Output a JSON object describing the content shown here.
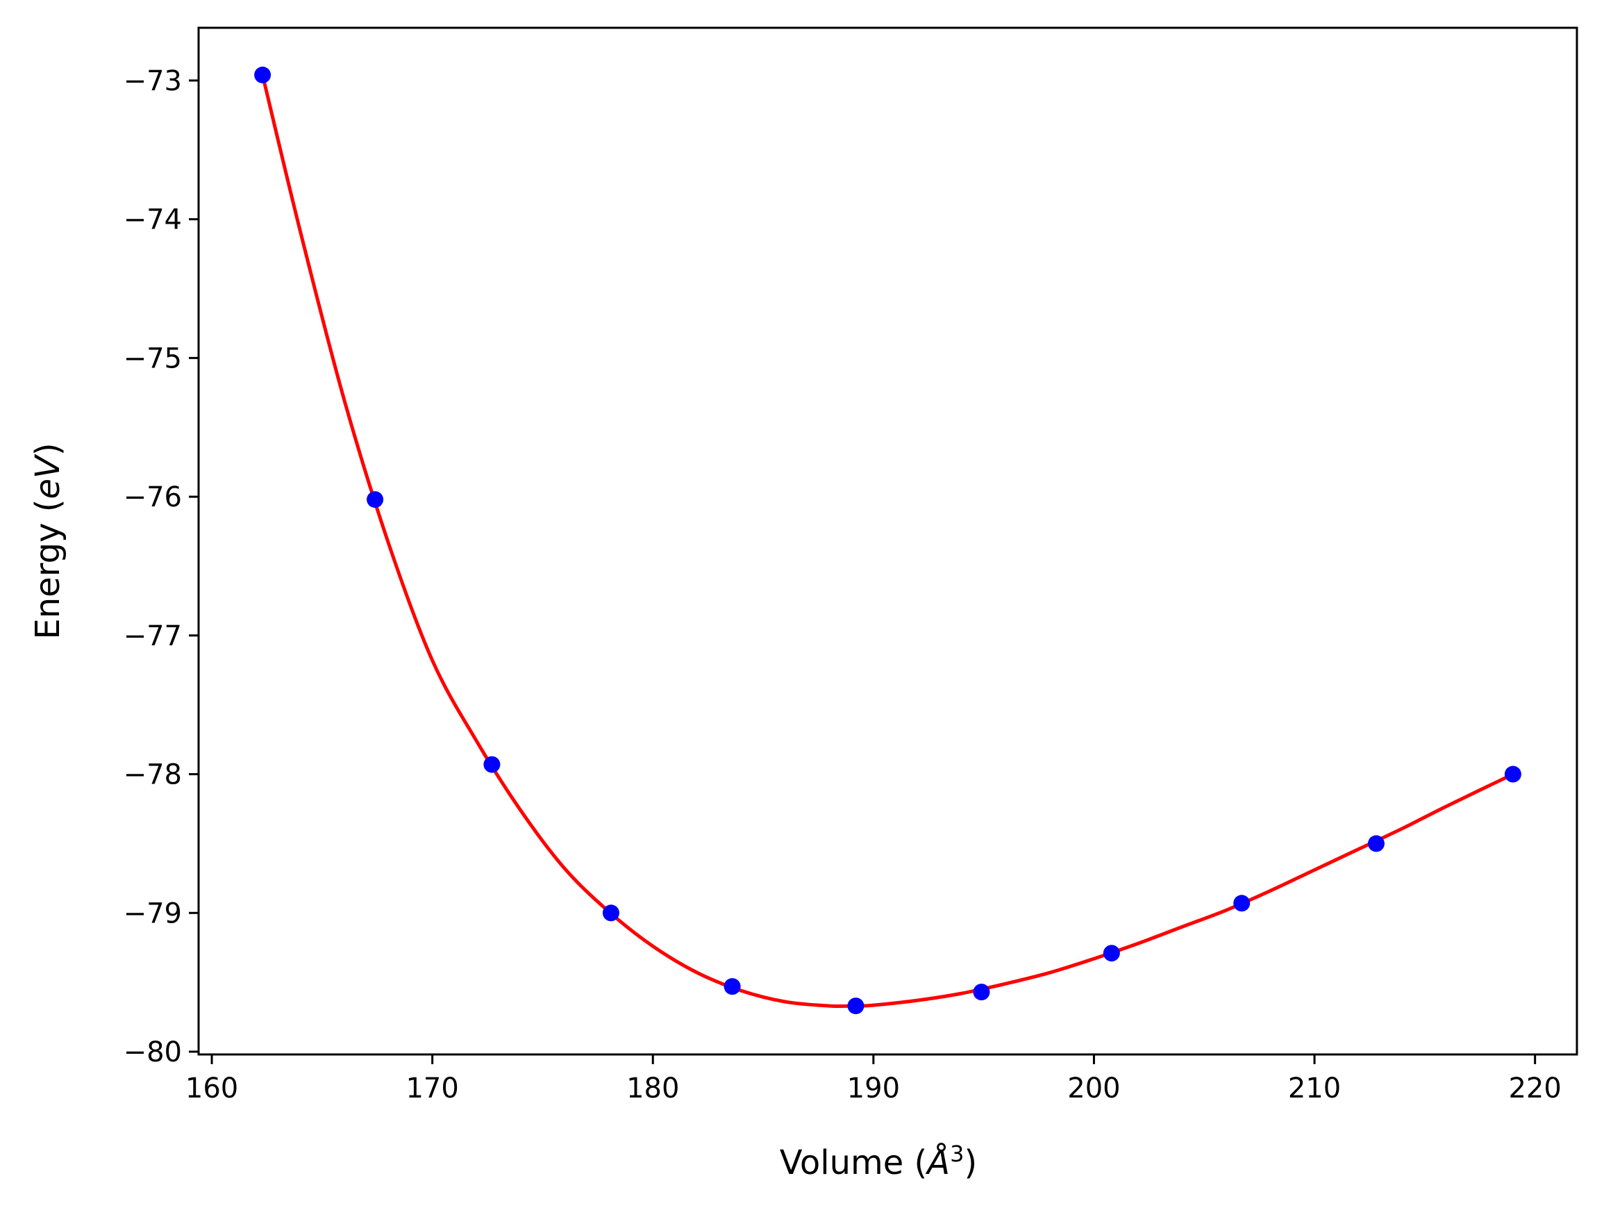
{
  "chart_data": {
    "type": "scatter",
    "xlabel_text": "Volume (",
    "xlabel_symbol": "Å",
    "xlabel_sup": "3",
    "xlabel_close": ")",
    "ylabel_text": "Energy (",
    "ylabel_unit": "eV",
    "ylabel_close": ")",
    "xlim": [
      159.4,
      221.9
    ],
    "ylim": [
      -80.02,
      -72.62
    ],
    "x_ticks": [
      160,
      170,
      180,
      190,
      200,
      210,
      220
    ],
    "y_ticks": [
      -80,
      -79,
      -78,
      -77,
      -76,
      -75,
      -74,
      -73
    ],
    "x_tick_labels": [
      "160",
      "170",
      "180",
      "190",
      "200",
      "210",
      "220"
    ],
    "y_tick_labels": [
      "−80",
      "−79",
      "−78",
      "−77",
      "−76",
      "−75",
      "−74",
      "−73"
    ],
    "grid": false,
    "series": [
      {
        "kind": "points",
        "color": "#0000ff",
        "x": [
          162.3,
          167.4,
          172.7,
          178.1,
          183.6,
          189.2,
          194.9,
          200.8,
          206.7,
          212.8,
          219.0
        ],
        "y": [
          -72.96,
          -76.02,
          -77.93,
          -79.0,
          -79.53,
          -79.67,
          -79.57,
          -79.29,
          -78.93,
          -78.5,
          -78.0
        ]
      },
      {
        "kind": "fit-curve",
        "color": "#ff0000",
        "x": [
          162.3,
          164.0,
          166.0,
          168.0,
          170.0,
          172.0,
          174.0,
          176.0,
          178.0,
          180.0,
          182.0,
          184.0,
          186.0,
          188.0,
          189.2,
          190.0,
          192.0,
          194.0,
          196.0,
          198.0,
          200.0,
          202.0,
          204.0,
          206.0,
          208.0,
          210.0,
          212.0,
          214.0,
          216.0,
          219.0
        ],
        "y": [
          -72.96,
          -74.08,
          -75.3,
          -76.33,
          -77.18,
          -77.76,
          -78.26,
          -78.68,
          -78.99,
          -79.24,
          -79.43,
          -79.56,
          -79.64,
          -79.67,
          -79.67,
          -79.665,
          -79.63,
          -79.58,
          -79.51,
          -79.43,
          -79.33,
          -79.22,
          -79.1,
          -78.98,
          -78.84,
          -78.69,
          -78.54,
          -78.39,
          -78.23,
          -78.0
        ]
      }
    ]
  }
}
